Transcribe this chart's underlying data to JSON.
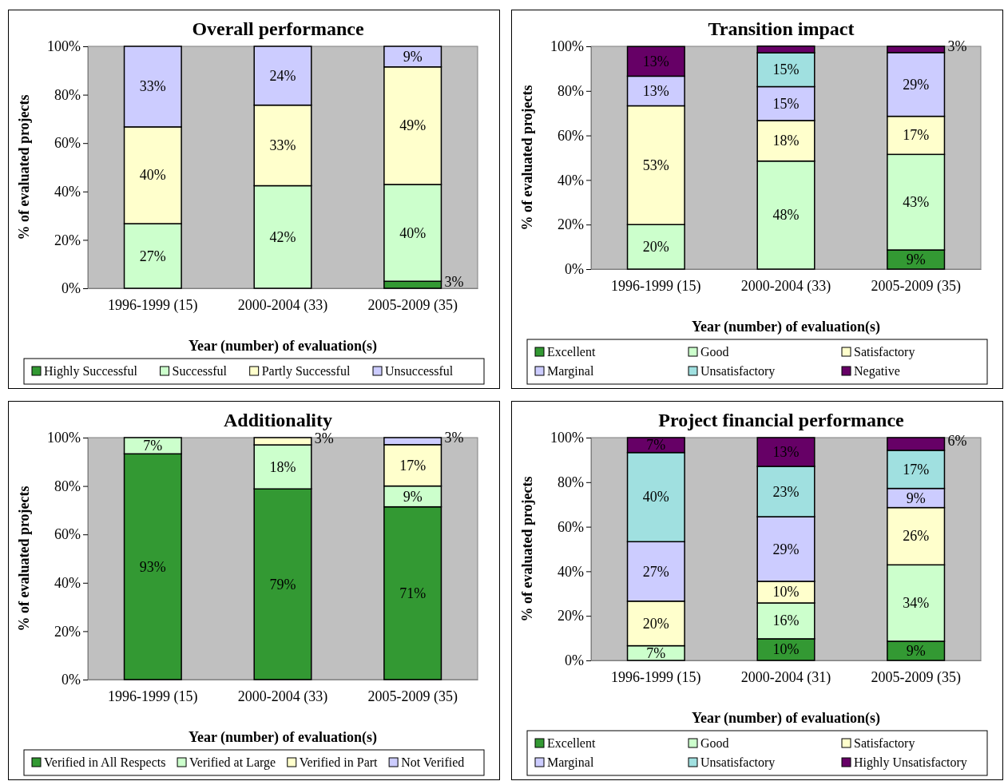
{
  "chart_data": [
    {
      "type": "bar",
      "stacked": true,
      "title": "Overall performance",
      "xlabel": "Year (number) of evaluation(s)",
      "ylabel": "% of evaluated projects",
      "categories": [
        "1996-1999 (15)",
        "2000-2004 (33)",
        "2005-2009 (35)"
      ],
      "ylim": [
        0,
        100
      ],
      "yticks": [
        {
          "value": 0,
          "label": "0%"
        },
        {
          "value": 20,
          "label": "20%"
        },
        {
          "value": 40,
          "label": "40%"
        },
        {
          "value": 60,
          "label": "60%"
        },
        {
          "value": 80,
          "label": "80%"
        },
        {
          "value": 100,
          "label": "100%"
        }
      ],
      "legend": "bottom",
      "grid": false,
      "series": [
        {
          "name": "Highly Successful",
          "color": "#339933",
          "values": [
            0,
            0,
            2.9
          ],
          "value_labels": [
            null,
            null,
            "3%"
          ]
        },
        {
          "name": "Successful",
          "color": "#ccffcc",
          "values": [
            26.7,
            42.4,
            40
          ],
          "value_labels": [
            "27%",
            "42%",
            "40%"
          ]
        },
        {
          "name": "Partly Successful",
          "color": "#ffffcc",
          "values": [
            40,
            33.3,
            48.6
          ],
          "value_labels": [
            "40%",
            "33%",
            "49%"
          ]
        },
        {
          "name": "Unsuccessful",
          "color": "#ccccff",
          "values": [
            33.3,
            24.3,
            8.5
          ],
          "value_labels": [
            "33%",
            "24%",
            "9%"
          ]
        }
      ]
    },
    {
      "type": "bar",
      "stacked": true,
      "title": "Transition impact",
      "xlabel": "Year (number) of evaluation(s)",
      "ylabel": "% of evaluated projects",
      "categories": [
        "1996-1999 (15)",
        "2000-2004 (33)",
        "2005-2009 (35)"
      ],
      "ylim": [
        0,
        100
      ],
      "yticks": [
        {
          "value": 0,
          "label": "0%"
        },
        {
          "value": 20,
          "label": "20%"
        },
        {
          "value": 40,
          "label": "40%"
        },
        {
          "value": 60,
          "label": "60%"
        },
        {
          "value": 80,
          "label": "80%"
        },
        {
          "value": 100,
          "label": "100%"
        }
      ],
      "legend": "bottom",
      "grid": false,
      "series": [
        {
          "name": "Excellent",
          "color": "#339933",
          "values": [
            0,
            0,
            8.6
          ],
          "value_labels": [
            null,
            null,
            "9%"
          ]
        },
        {
          "name": "Good",
          "color": "#ccffcc",
          "values": [
            20,
            48.5,
            42.9
          ],
          "value_labels": [
            "20%",
            "48%",
            "43%"
          ]
        },
        {
          "name": "Satisfactory",
          "color": "#ffffcc",
          "values": [
            53.3,
            18.2,
            17.1
          ],
          "value_labels": [
            "53%",
            "18%",
            "17%"
          ]
        },
        {
          "name": "Marginal",
          "color": "#ccccff",
          "values": [
            13.3,
            15.2,
            28.6
          ],
          "value_labels": [
            "13%",
            "15%",
            "29%"
          ]
        },
        {
          "name": "Unsatisfactory",
          "color": "#a0e0e0",
          "values": [
            0,
            15.2,
            0
          ],
          "value_labels": [
            null,
            "15%",
            null
          ]
        },
        {
          "name": "Negative",
          "color": "#660066",
          "values": [
            13.3,
            3,
            2.8
          ],
          "value_labels": [
            "13%",
            null,
            "3%"
          ]
        }
      ]
    },
    {
      "type": "bar",
      "stacked": true,
      "title": "Additionality",
      "xlabel": "Year (number) of evaluation(s)",
      "ylabel": "% of evaluated projects",
      "categories": [
        "1996-1999 (15)",
        "2000-2004 (33)",
        "2005-2009 (35)"
      ],
      "ylim": [
        0,
        100
      ],
      "yticks": [
        {
          "value": 0,
          "label": "0%"
        },
        {
          "value": 20,
          "label": "20%"
        },
        {
          "value": 40,
          "label": "40%"
        },
        {
          "value": 60,
          "label": "60%"
        },
        {
          "value": 80,
          "label": "80%"
        },
        {
          "value": 100,
          "label": "100%"
        }
      ],
      "legend": "bottom",
      "grid": false,
      "series": [
        {
          "name": "Verified in All Respects",
          "color": "#339933",
          "values": [
            93.3,
            78.8,
            71.4
          ],
          "value_labels": [
            "93%",
            "79%",
            "71%"
          ]
        },
        {
          "name": "Verified at Large",
          "color": "#ccffcc",
          "values": [
            6.7,
            18.2,
            8.6
          ],
          "value_labels": [
            "7%",
            "18%",
            "9%"
          ]
        },
        {
          "name": "Verified in Part",
          "color": "#ffffcc",
          "values": [
            0,
            3,
            17.1
          ],
          "value_labels": [
            null,
            "3%",
            "17%"
          ]
        },
        {
          "name": "Not Verified",
          "color": "#ccccff",
          "values": [
            0,
            0,
            2.9
          ],
          "value_labels": [
            null,
            null,
            "3%"
          ]
        }
      ]
    },
    {
      "type": "bar",
      "stacked": true,
      "title": "Project financial performance",
      "xlabel": "Year (number) of evaluation(s)",
      "ylabel": "% of evaluated projects",
      "categories": [
        "1996-1999 (15)",
        "2000-2004 (31)",
        "2005-2009 (35)"
      ],
      "ylim": [
        0,
        100
      ],
      "yticks": [
        {
          "value": 0,
          "label": "0%"
        },
        {
          "value": 20,
          "label": "20%"
        },
        {
          "value": 40,
          "label": "40%"
        },
        {
          "value": 60,
          "label": "60%"
        },
        {
          "value": 80,
          "label": "80%"
        },
        {
          "value": 100,
          "label": "100%"
        }
      ],
      "legend": "bottom",
      "grid": false,
      "series": [
        {
          "name": "Excellent",
          "color": "#339933",
          "values": [
            0,
            9.7,
            8.6
          ],
          "value_labels": [
            null,
            "10%",
            "9%"
          ]
        },
        {
          "name": "Good",
          "color": "#ccffcc",
          "values": [
            6.6,
            16.1,
            34.3
          ],
          "value_labels": [
            "7%",
            "16%",
            "34%"
          ]
        },
        {
          "name": "Satisfactory",
          "color": "#ffffcc",
          "values": [
            20,
            9.7,
            25.7
          ],
          "value_labels": [
            "20%",
            "10%",
            "26%"
          ]
        },
        {
          "name": "Marginal",
          "color": "#ccccff",
          "values": [
            26.7,
            29,
            8.6
          ],
          "value_labels": [
            "27%",
            "29%",
            "9%"
          ]
        },
        {
          "name": "Unsatisfactory",
          "color": "#a0e0e0",
          "values": [
            40,
            22.6,
            17.1
          ],
          "value_labels": [
            "40%",
            "23%",
            "17%"
          ]
        },
        {
          "name": "Highly Unsatisfactory",
          "color": "#660066",
          "values": [
            6.7,
            12.9,
            5.7
          ],
          "value_labels": [
            "7%",
            "13%",
            "6%"
          ]
        }
      ]
    }
  ]
}
